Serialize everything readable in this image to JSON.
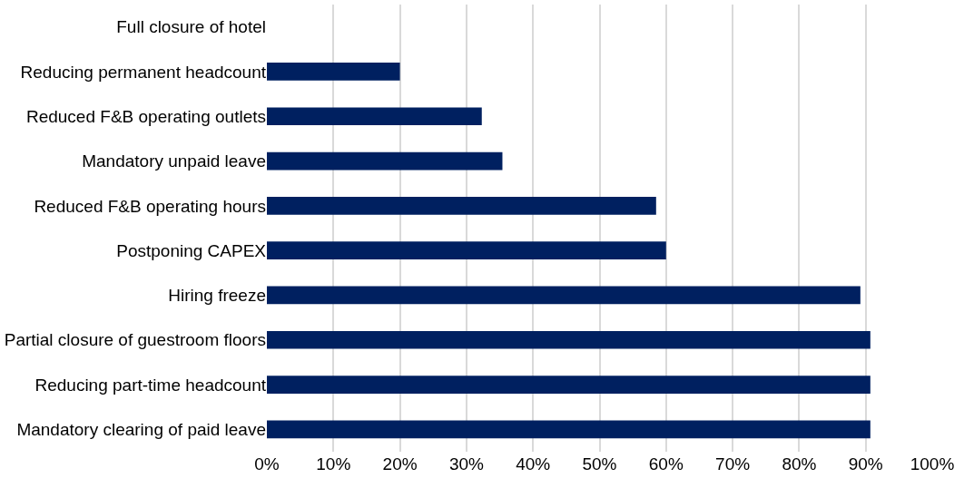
{
  "chart_data": {
    "type": "bar",
    "orientation": "horizontal",
    "categories": [
      "Full closure of hotel",
      "Reducing permanent headcount",
      "Reduced F&B operating outlets",
      "Mandatory unpaid leave",
      "Reduced F&B operating hours",
      "Postponing CAPEX",
      "Hiring freeze",
      "Partial closure of guestroom floors",
      "Reducing part-time headcount",
      "Mandatory clearing of paid leave"
    ],
    "values": [
      0,
      20,
      32.3,
      35.4,
      58.5,
      60,
      89.2,
      90.7,
      90.7,
      90.7
    ],
    "color": "#002060",
    "xlim": [
      0,
      100
    ],
    "xticks": [
      {
        "value": 0,
        "label": "0%"
      },
      {
        "value": 10,
        "label": "10%"
      },
      {
        "value": 20,
        "label": "20%"
      },
      {
        "value": 30,
        "label": "30%"
      },
      {
        "value": 40,
        "label": "40%"
      },
      {
        "value": 50,
        "label": "50%"
      },
      {
        "value": 60,
        "label": "60%"
      },
      {
        "value": 70,
        "label": "70%"
      },
      {
        "value": 80,
        "label": "80%"
      },
      {
        "value": 90,
        "label": "90%"
      },
      {
        "value": 100,
        "label": "100%"
      }
    ],
    "grid": "x"
  }
}
